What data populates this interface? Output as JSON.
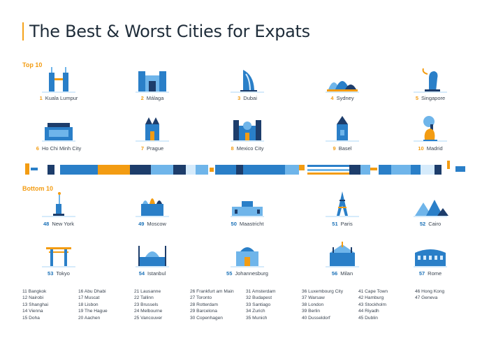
{
  "title": "The Best & Worst Cities for Expats",
  "top_label": "Top 10",
  "bottom_label": "Bottom 10",
  "top_row1": [
    {
      "rank": "1",
      "name": "Kuala Lumpur",
      "icon": "petronas-towers-icon"
    },
    {
      "rank": "2",
      "name": "Málaga",
      "icon": "malaga-building-icon"
    },
    {
      "rank": "3",
      "name": "Dubai",
      "icon": "burj-al-arab-icon"
    },
    {
      "rank": "4",
      "name": "Sydney",
      "icon": "opera-house-icon"
    },
    {
      "rank": "5",
      "name": "Singapore",
      "icon": "merlion-icon"
    }
  ],
  "top_row2": [
    {
      "rank": "6",
      "name": "Ho Chi Minh City",
      "icon": "mausoleum-icon"
    },
    {
      "rank": "7",
      "name": "Prague",
      "icon": "prague-church-icon"
    },
    {
      "rank": "8",
      "name": "Mexico City",
      "icon": "cathedral-icon"
    },
    {
      "rank": "9",
      "name": "Basel",
      "icon": "basel-tower-icon"
    },
    {
      "rank": "10",
      "name": "Madrid",
      "icon": "bear-tree-statue-icon"
    }
  ],
  "bottom_row1": [
    {
      "rank": "48",
      "name": "New York",
      "icon": "statue-of-liberty-icon"
    },
    {
      "rank": "49",
      "name": "Moscow",
      "icon": "saint-basil-icon"
    },
    {
      "rank": "50",
      "name": "Maastricht",
      "icon": "maastricht-building-icon"
    },
    {
      "rank": "51",
      "name": "Paris",
      "icon": "eiffel-tower-icon"
    },
    {
      "rank": "52",
      "name": "Cairo",
      "icon": "pyramids-icon"
    }
  ],
  "bottom_row2": [
    {
      "rank": "53",
      "name": "Tokyo",
      "icon": "torii-gate-icon"
    },
    {
      "rank": "54",
      "name": "Istanbul",
      "icon": "blue-mosque-icon"
    },
    {
      "rank": "55",
      "name": "Johannesburg",
      "icon": "johannesburg-building-icon"
    },
    {
      "rank": "56",
      "name": "Milan",
      "icon": "milan-cathedral-icon"
    },
    {
      "rank": "57",
      "name": "Rome",
      "icon": "colosseum-icon"
    }
  ],
  "list_columns": [
    [
      "11 Bangkok",
      "12 Nairobi",
      "13 Shanghai",
      "14 Vienna",
      "15 Doha"
    ],
    [
      "16 Abu Dhabi",
      "17 Muscat",
      "18 Lisbon",
      "19 The Hague",
      "20 Aachen"
    ],
    [
      "21 Lausanne",
      "22 Tallinn",
      "23 Brussels",
      "24 Melbourne",
      "25 Vancouver"
    ],
    [
      "26 Frankfurt am Main",
      "27 Toronto",
      "28 Rotterdam",
      "29 Barcelona",
      "30 Copenhagen"
    ],
    [
      "31 Amsterdam",
      "32 Budapest",
      "33 Santiago",
      "34 Zurich",
      "35 Munich"
    ],
    [
      "36 Luxembourg City",
      "37 Warsaw",
      "38 London",
      "39 Berlin",
      "40 Dusseldorf"
    ],
    [
      "41 Cape Town",
      "42 Hamburg",
      "43 Stockholm",
      "44 Riyadh",
      "45 Dublin"
    ],
    [
      "46 Hong Kong",
      "47 Geneva"
    ]
  ],
  "colors": {
    "accent": "#f39c12",
    "dark_blue": "#1d3d6b",
    "blue": "#2a7fc8",
    "light_blue": "#6fb5ea",
    "pale_blue": "#d6ebfb"
  }
}
